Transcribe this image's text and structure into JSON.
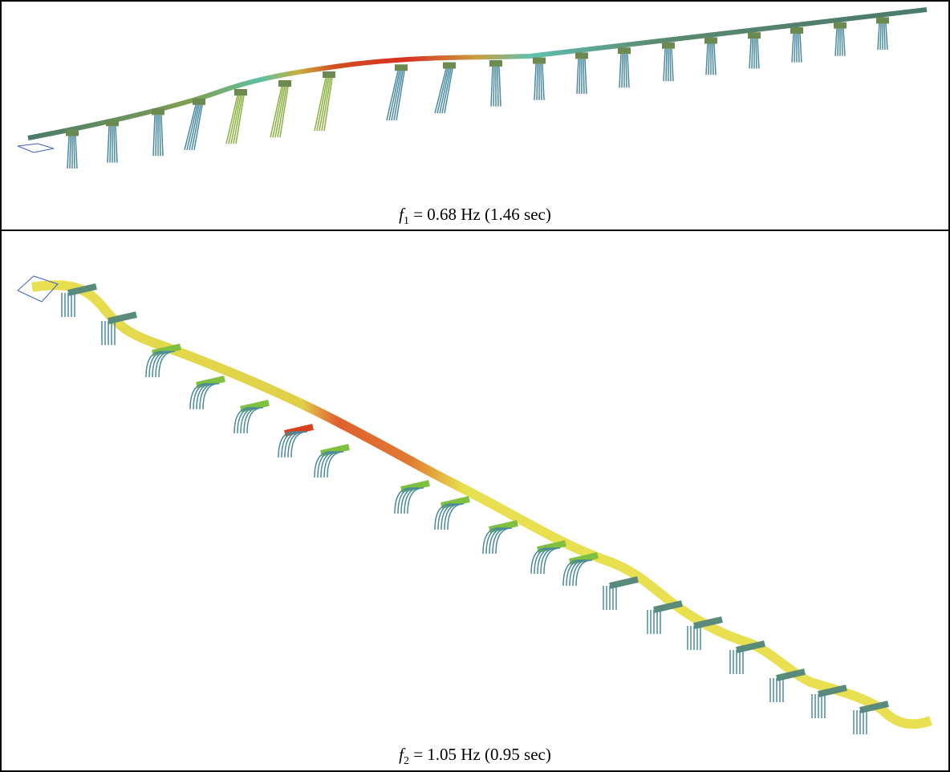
{
  "panels": [
    {
      "symbol": "f",
      "subscript": "1",
      "caption": " = 0.68 Hz (1.46 sec)"
    },
    {
      "symbol": "f",
      "subscript": "2",
      "caption": " = 1.05 Hz (0.95 sec)"
    }
  ]
}
